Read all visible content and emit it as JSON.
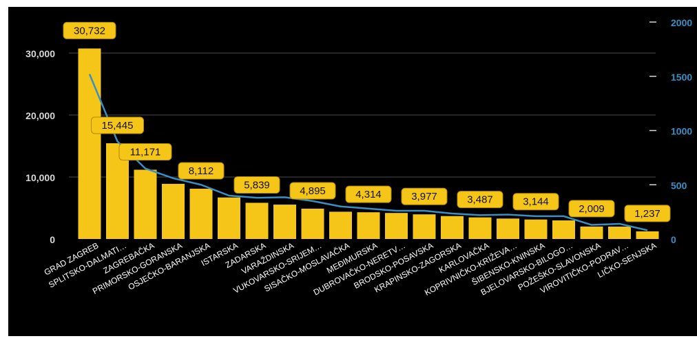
{
  "chart_data": {
    "type": "bar",
    "title": "",
    "xlabel": "",
    "ylabel": "",
    "ylim": [
      0,
      35000
    ],
    "y2lim": [
      0,
      2000
    ],
    "legend": "none",
    "grid": true,
    "categories": [
      "GRAD ZAGREB",
      "SPLITSKO-DALMATI…",
      "ZAGREBAČKA",
      "PRIMORSKO-GORANSKA",
      "OSJEČKO-BARANJSKA",
      "ISTARSKA",
      "ZADARSKA",
      "VARAŽDINSKA",
      "VUKOVARSKO-SRIJEM…",
      "SISAČKO-MOSLAVAČKA",
      "MEĐIMURSKA",
      "DUBROVAČKO-NERETV…",
      "BRODSKO-POSAVSKA",
      "KRAPINSKO-ZAGORSKA",
      "KARLOVAČKA",
      "KOPRIVNIČKO-KRIŽEVA…",
      "ŠIBENSKO-KNINSKA",
      "BJELOVARSKO-BILOGO…",
      "POŽEŠKO-SLAVONSKA",
      "VIROVITIČKO-PODRAV…",
      "LIČKO-SENJSKA"
    ],
    "series": [
      {
        "type": "bar",
        "axis": "left",
        "color": "#f5c518",
        "values": [
          30732,
          15445,
          11171,
          8900,
          8112,
          6700,
          5839,
          5550,
          4895,
          4400,
          4314,
          4200,
          3977,
          3700,
          3487,
          3300,
          3144,
          3000,
          2009,
          2000,
          1237
        ]
      },
      {
        "type": "line",
        "axis": "right",
        "color": "#3a8fc4",
        "values": [
          1520,
          900,
          650,
          560,
          500,
          400,
          380,
          385,
          350,
          300,
          280,
          260,
          260,
          235,
          220,
          225,
          210,
          210,
          130,
          140,
          80
        ]
      }
    ],
    "data_labels": [
      {
        "index": 0,
        "text": "30,732"
      },
      {
        "index": 1,
        "text": "15,445"
      },
      {
        "index": 2,
        "text": "11,171"
      },
      {
        "index": 4,
        "text": "8,112"
      },
      {
        "index": 6,
        "text": "5,839"
      },
      {
        "index": 8,
        "text": "4,895"
      },
      {
        "index": 10,
        "text": "4,314"
      },
      {
        "index": 12,
        "text": "3,977"
      },
      {
        "index": 14,
        "text": "3,487"
      },
      {
        "index": 16,
        "text": "3,144"
      },
      {
        "index": 18,
        "text": "2,009"
      },
      {
        "index": 20,
        "text": "1,237"
      }
    ],
    "y_ticks": [
      {
        "value": 0,
        "label": "0"
      },
      {
        "value": 10000,
        "label": "10,000"
      },
      {
        "value": 20000,
        "label": "20,000"
      },
      {
        "value": 30000,
        "label": "30,000"
      }
    ],
    "y2_ticks": [
      {
        "value": 0,
        "label": "0"
      },
      {
        "value": 500,
        "label": "500"
      },
      {
        "value": 1000,
        "label": "1000"
      },
      {
        "value": 1500,
        "label": "1500"
      },
      {
        "value": 2000,
        "label": "2000"
      }
    ],
    "colors": {
      "background": "#000000",
      "grid": "#4a4a4a",
      "bar": "#f5c518",
      "label_box": "#f5c518",
      "label_border": "#b08a00",
      "label_text": "#111111",
      "left_axis_text": "#d8d8d8",
      "right_axis_text": "#3a8fc4",
      "line": "#3a8fc4",
      "category_text": "#ffffff"
    }
  }
}
